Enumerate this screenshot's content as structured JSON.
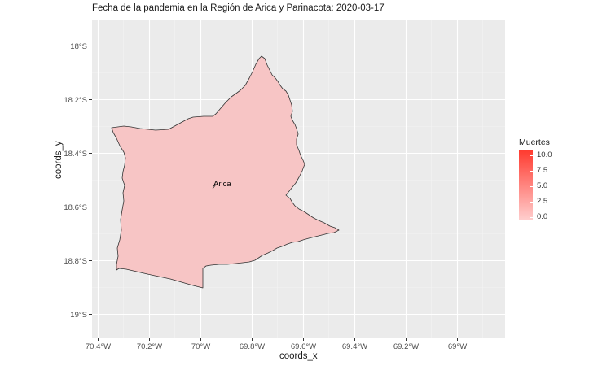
{
  "title": "Fecha de la pandemia en la Región de Arica y Parinacota: 2020-03-17",
  "axes": {
    "x_label": "coords_x",
    "y_label": "coords_y",
    "x_ticks": [
      "70.4°W",
      "70.2°W",
      "70°W",
      "69.8°W",
      "69.6°W",
      "69.4°W",
      "69.2°W",
      "69°W"
    ],
    "y_ticks": [
      "18°S",
      "18.2°S",
      "18.4°S",
      "18.6°S",
      "18.8°S",
      "19°S"
    ]
  },
  "legend": {
    "title": "Muertes",
    "labels": [
      "10.0",
      "7.5",
      "5.0",
      "2.5",
      "0.0"
    ],
    "colors": {
      "high": "#ff3b30",
      "low": "#ffcfcf"
    }
  },
  "map": {
    "region_fill": "#f7c5c5",
    "region_stroke": "#333333",
    "panel_background": "#ebebeb",
    "city_label": "Arica"
  }
}
